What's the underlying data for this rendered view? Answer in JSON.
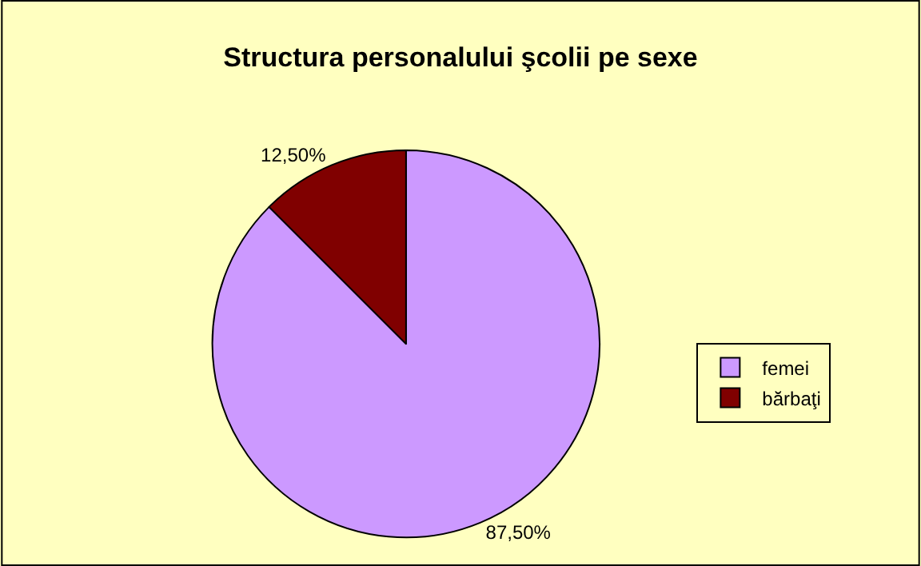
{
  "chart_data": {
    "type": "pie",
    "title": "Structura personalului şcolii pe sexe",
    "categories": [
      "femei",
      "bărbaţi"
    ],
    "values": [
      87.5,
      12.5
    ],
    "colors": [
      "#cc99ff",
      "#800000"
    ],
    "value_labels": [
      "87,50%",
      "12,50%"
    ],
    "legend": "right"
  }
}
